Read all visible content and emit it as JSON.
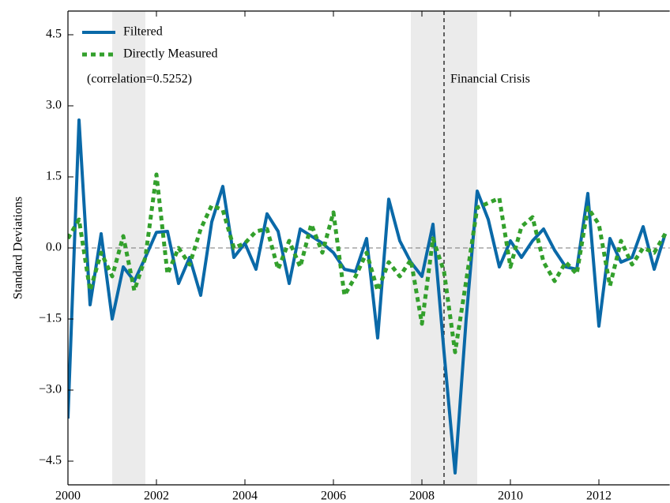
{
  "chart_data": {
    "type": "line",
    "ylabel": "Standard Deviations",
    "x": [
      2000,
      2000.25,
      2000.5,
      2000.75,
      2001,
      2001.25,
      2001.5,
      2001.75,
      2002,
      2002.25,
      2002.5,
      2002.75,
      2003,
      2003.25,
      2003.5,
      2003.75,
      2004,
      2004.25,
      2004.5,
      2004.75,
      2005,
      2005.25,
      2005.5,
      2005.75,
      2006,
      2006.25,
      2006.5,
      2006.75,
      2007,
      2007.25,
      2007.5,
      2007.75,
      2008,
      2008.25,
      2008.5,
      2008.75,
      2009,
      2009.25,
      2009.5,
      2009.75,
      2010,
      2010.25,
      2010.5,
      2010.75,
      2011,
      2011.25,
      2011.5,
      2011.75,
      2012,
      2012.25,
      2012.5,
      2012.75,
      2013,
      2013.25,
      2013.5
    ],
    "series": [
      {
        "name": "Filtered",
        "color": "#0a69a8",
        "style": "solid",
        "values": [
          -3.6,
          2.7,
          -1.2,
          0.3,
          -1.5,
          -0.4,
          -0.7,
          -0.2,
          0.33,
          0.35,
          -0.75,
          -0.2,
          -1.0,
          0.55,
          1.3,
          -0.2,
          0.1,
          -0.45,
          0.72,
          0.35,
          -0.75,
          0.4,
          0.25,
          0.1,
          -0.1,
          -0.45,
          -0.5,
          0.2,
          -1.9,
          1.03,
          0.15,
          -0.3,
          -0.6,
          0.5,
          -2.2,
          -4.75,
          -1.5,
          1.2,
          0.6,
          -0.4,
          0.15,
          -0.2,
          0.15,
          0.4,
          -0.05,
          -0.4,
          -0.45,
          1.15,
          -1.65,
          0.2,
          -0.3,
          -0.2,
          0.45,
          -0.45,
          0.3
        ]
      },
      {
        "name": "Directly Measured",
        "color": "#33a02c",
        "style": "dotted",
        "values": [
          0.2,
          0.6,
          -0.9,
          -0.1,
          -0.6,
          0.25,
          -0.9,
          -0.2,
          1.55,
          -0.55,
          0.0,
          -0.35,
          0.4,
          0.9,
          0.8,
          0.0,
          0.1,
          0.35,
          0.4,
          -0.45,
          0.15,
          -0.4,
          0.5,
          -0.1,
          0.75,
          -1.0,
          -0.6,
          -0.1,
          -0.9,
          -0.3,
          -0.6,
          -0.25,
          -1.6,
          0.2,
          -0.5,
          -2.2,
          -0.7,
          0.85,
          0.95,
          1.05,
          -0.4,
          0.45,
          0.65,
          -0.3,
          -0.7,
          -0.3,
          -0.55,
          0.85,
          0.5,
          -0.8,
          0.15,
          -0.35,
          0.0,
          -0.1,
          0.3
        ]
      }
    ],
    "annotations": [
      "(correlation=0.5252)",
      "Financial Crisis"
    ],
    "shaded_regions": [
      [
        2001,
        2001.75
      ],
      [
        2007.75,
        2009.25
      ]
    ],
    "vline": 2008.5,
    "hline": 0,
    "xlim": [
      2000,
      2013.6
    ],
    "xticks": [
      2000,
      2002,
      2004,
      2006,
      2008,
      2010,
      2012
    ],
    "ylim": [
      -5,
      5
    ],
    "yticks": [
      {
        "value": -4.5,
        "label": "−4.5"
      },
      {
        "value": -3,
        "label": "−3.0"
      },
      {
        "value": -1.5,
        "label": "−1.5"
      },
      {
        "value": 0,
        "label": "0.0"
      },
      {
        "value": 1.5,
        "label": "1.5"
      },
      {
        "value": 3,
        "label": "3.0"
      },
      {
        "value": 4.5,
        "label": "4.5"
      }
    ],
    "legend": "upper-left",
    "grid": false
  }
}
